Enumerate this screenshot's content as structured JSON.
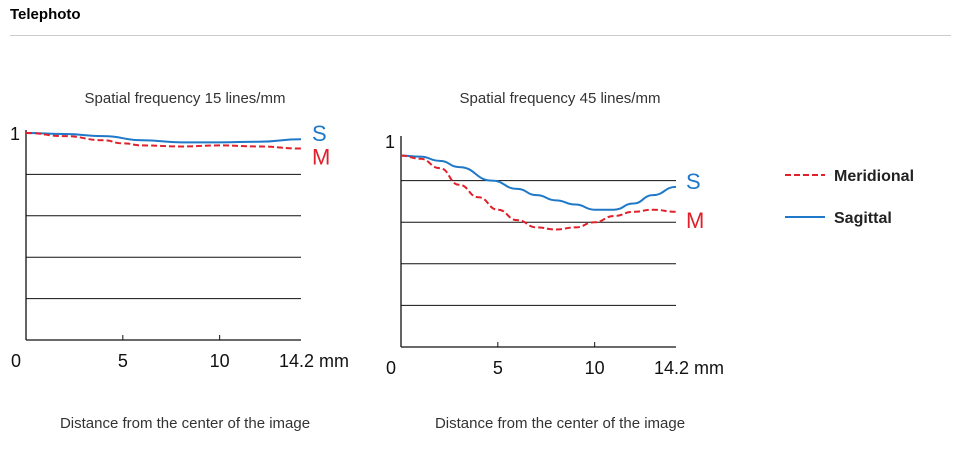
{
  "header": {
    "title": "Telephoto"
  },
  "legend": [
    {
      "name": "Meridional",
      "color": "#e0202a",
      "dash": true
    },
    {
      "name": "Sagittal",
      "color": "#1f78c8",
      "dash": false
    }
  ],
  "chart_data": [
    {
      "type": "line",
      "title": "Spatial frequency 15 lines/mm",
      "xlabel": "Distance from the center of the image",
      "x_unit": "mm",
      "xlim": [
        0,
        14.2
      ],
      "ylim": [
        0,
        1
      ],
      "x_ticks": [
        "0",
        "5",
        "10",
        "14.2 mm"
      ],
      "y_ticks": [
        "1"
      ],
      "series": [
        {
          "name": "Sagittal",
          "label": "S",
          "x": [
            0,
            2,
            4,
            6,
            8,
            10,
            12,
            14.2
          ],
          "y": [
            1.0,
            0.995,
            0.985,
            0.965,
            0.955,
            0.955,
            0.958,
            0.97
          ]
        },
        {
          "name": "Meridional",
          "label": "M",
          "x": [
            0,
            2,
            4,
            5,
            6,
            8,
            10,
            12,
            14.2
          ],
          "y": [
            1.0,
            0.985,
            0.965,
            0.95,
            0.94,
            0.935,
            0.94,
            0.935,
            0.925
          ]
        }
      ]
    },
    {
      "type": "line",
      "title": "Spatial frequency 45 lines/mm",
      "xlabel": "Distance from the center of the image",
      "x_unit": "mm",
      "xlim": [
        0,
        14.2
      ],
      "ylim": [
        0,
        1
      ],
      "x_ticks": [
        "0",
        "5",
        "10",
        "14.2 mm"
      ],
      "y_ticks": [
        "1"
      ],
      "series": [
        {
          "name": "Sagittal",
          "label": "S",
          "x": [
            0,
            1,
            2,
            3,
            4.7,
            6,
            7,
            8,
            9,
            10,
            11,
            12,
            13,
            14.2
          ],
          "y": [
            0.92,
            0.915,
            0.895,
            0.865,
            0.8,
            0.76,
            0.73,
            0.705,
            0.685,
            0.66,
            0.66,
            0.69,
            0.73,
            0.77
          ]
        },
        {
          "name": "Meridional",
          "label": "M",
          "x": [
            0,
            1,
            2,
            3,
            4,
            5,
            6,
            7,
            8,
            9,
            10,
            11,
            12,
            13,
            14.2
          ],
          "y": [
            0.92,
            0.905,
            0.86,
            0.78,
            0.72,
            0.66,
            0.61,
            0.575,
            0.565,
            0.575,
            0.6,
            0.63,
            0.65,
            0.66,
            0.65
          ]
        }
      ]
    }
  ]
}
